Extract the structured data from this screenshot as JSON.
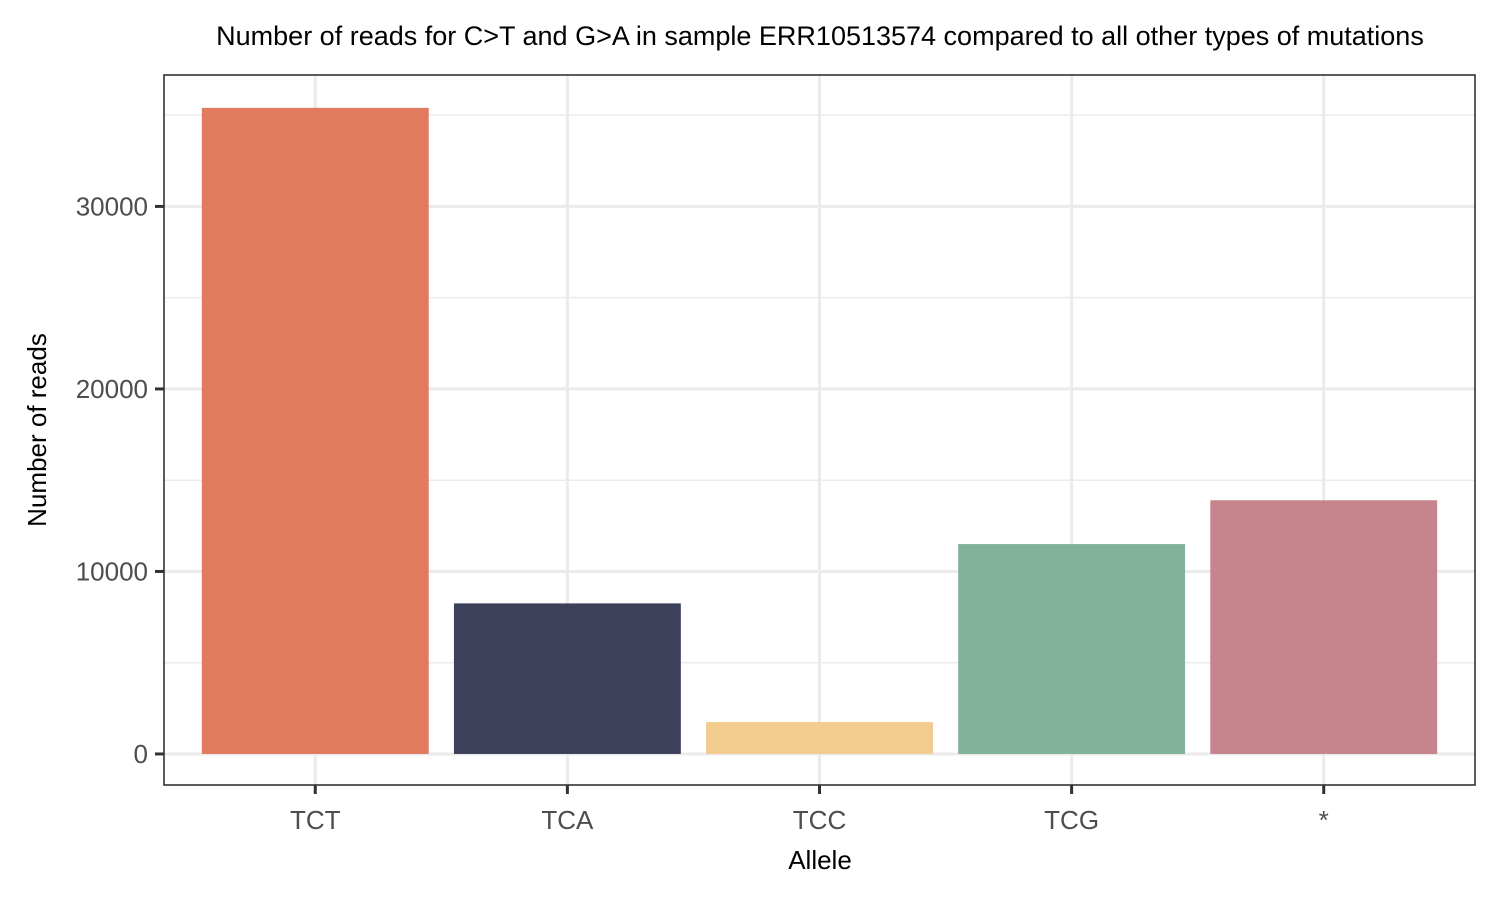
{
  "chart_data": {
    "type": "bar",
    "title": "Number of reads for C>T and G>A in sample ERR10513574 compared to all other types of mutations",
    "xlabel": "Allele",
    "ylabel": "Number of reads",
    "categories": [
      "TCT",
      "TCA",
      "TCC",
      "TCG",
      "*"
    ],
    "values": [
      35400,
      8250,
      1750,
      11500,
      13900
    ],
    "colors": [
      "#E07B5F",
      "#3D405B",
      "#F2CC8F",
      "#81B29A",
      "#C6858D"
    ],
    "ylim": [
      -1700,
      37200
    ],
    "yticks": [
      0,
      10000,
      20000,
      30000
    ],
    "ytick_labels": [
      "0",
      "10000",
      "20000",
      "30000"
    ],
    "grid": true,
    "legend": "none"
  }
}
